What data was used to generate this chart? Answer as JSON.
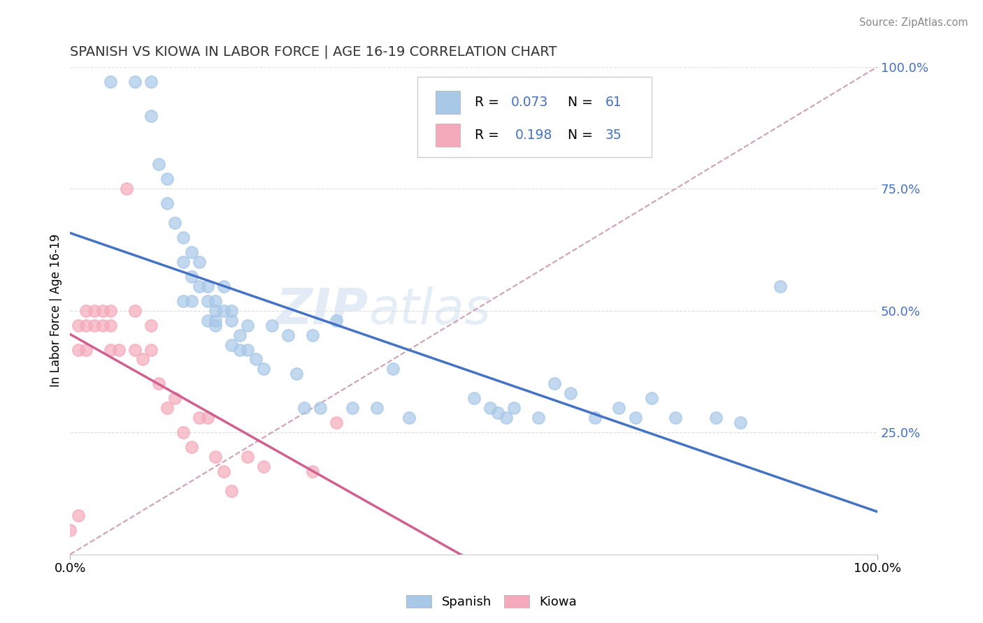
{
  "title": "SPANISH VS KIOWA IN LABOR FORCE | AGE 16-19 CORRELATION CHART",
  "source": "Source: ZipAtlas.com",
  "ylabel": "In Labor Force | Age 16-19",
  "xlim": [
    0,
    1
  ],
  "ylim": [
    0,
    1
  ],
  "blue_color": "#A8C8E8",
  "pink_color": "#F4AABB",
  "blue_line_color": "#4472C4",
  "pink_line_color": "#D06090",
  "ref_line_color": "#D0A0B0",
  "grid_color": "#DDDDDD",
  "spanish_x": [
    0.05,
    0.08,
    0.1,
    0.1,
    0.11,
    0.12,
    0.12,
    0.13,
    0.14,
    0.14,
    0.14,
    0.15,
    0.15,
    0.15,
    0.16,
    0.16,
    0.17,
    0.17,
    0.17,
    0.18,
    0.18,
    0.18,
    0.18,
    0.19,
    0.19,
    0.2,
    0.2,
    0.2,
    0.21,
    0.21,
    0.22,
    0.22,
    0.23,
    0.24,
    0.25,
    0.27,
    0.28,
    0.29,
    0.3,
    0.31,
    0.33,
    0.35,
    0.38,
    0.4,
    0.42,
    0.5,
    0.52,
    0.53,
    0.54,
    0.55,
    0.58,
    0.6,
    0.62,
    0.65,
    0.68,
    0.7,
    0.72,
    0.75,
    0.8,
    0.83,
    0.88
  ],
  "spanish_y": [
    0.97,
    0.97,
    0.9,
    0.97,
    0.8,
    0.72,
    0.77,
    0.68,
    0.65,
    0.52,
    0.6,
    0.52,
    0.57,
    0.62,
    0.55,
    0.6,
    0.55,
    0.52,
    0.48,
    0.5,
    0.47,
    0.52,
    0.48,
    0.5,
    0.55,
    0.43,
    0.48,
    0.5,
    0.42,
    0.45,
    0.42,
    0.47,
    0.4,
    0.38,
    0.47,
    0.45,
    0.37,
    0.3,
    0.45,
    0.3,
    0.48,
    0.3,
    0.3,
    0.38,
    0.28,
    0.32,
    0.3,
    0.29,
    0.28,
    0.3,
    0.28,
    0.35,
    0.33,
    0.28,
    0.3,
    0.28,
    0.32,
    0.28,
    0.28,
    0.27,
    0.55
  ],
  "kiowa_x": [
    0.0,
    0.01,
    0.01,
    0.01,
    0.02,
    0.02,
    0.02,
    0.03,
    0.03,
    0.04,
    0.04,
    0.05,
    0.05,
    0.05,
    0.06,
    0.07,
    0.08,
    0.08,
    0.09,
    0.1,
    0.1,
    0.11,
    0.12,
    0.13,
    0.14,
    0.15,
    0.16,
    0.17,
    0.18,
    0.19,
    0.2,
    0.22,
    0.24,
    0.3,
    0.33
  ],
  "kiowa_y": [
    0.05,
    0.08,
    0.42,
    0.47,
    0.42,
    0.47,
    0.5,
    0.5,
    0.47,
    0.47,
    0.5,
    0.42,
    0.47,
    0.5,
    0.42,
    0.75,
    0.42,
    0.5,
    0.4,
    0.42,
    0.47,
    0.35,
    0.3,
    0.32,
    0.25,
    0.22,
    0.28,
    0.28,
    0.2,
    0.17,
    0.13,
    0.2,
    0.18,
    0.17,
    0.27
  ]
}
